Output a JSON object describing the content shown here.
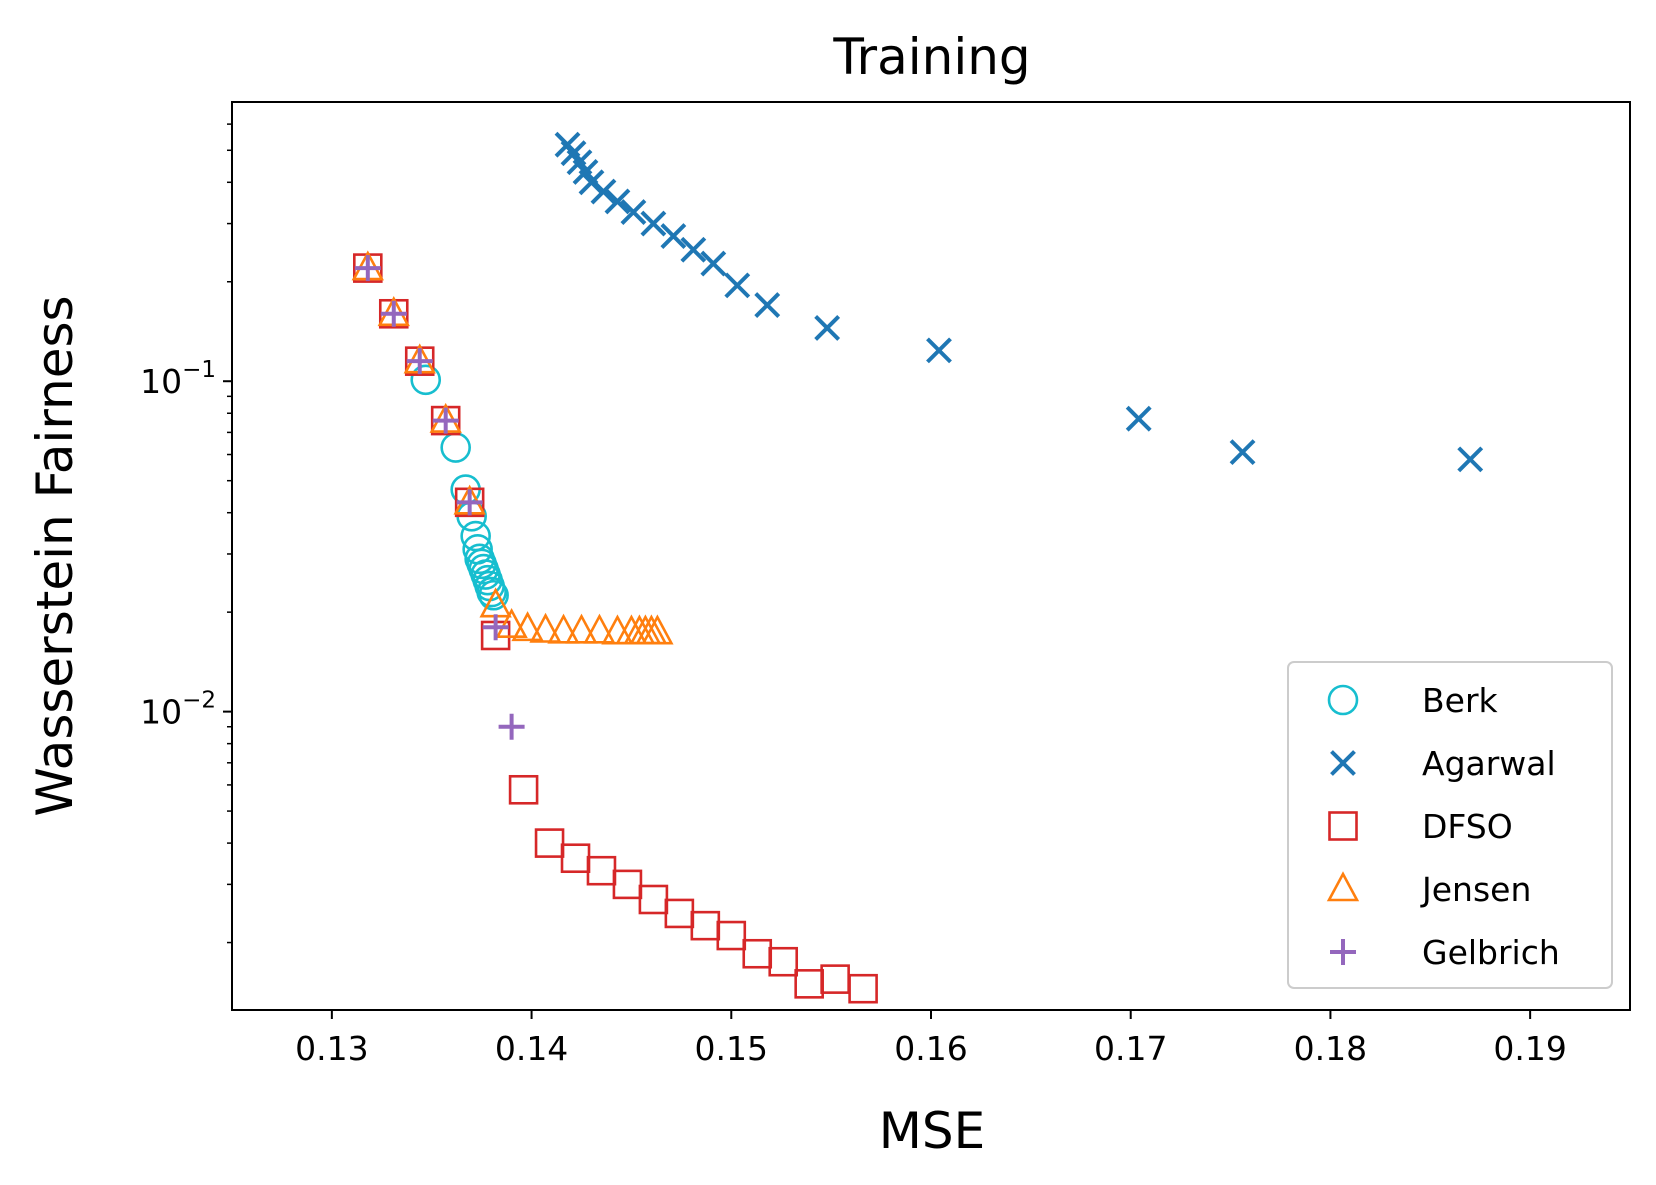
{
  "chart_data": {
    "type": "scatter",
    "title": "Training",
    "xlabel": "MSE",
    "ylabel": "Wasserstein Fairness",
    "xlim": [
      0.125,
      0.195
    ],
    "ylim": [
      0.00125,
      0.7
    ],
    "yscale": "log",
    "xticks": [
      0.13,
      0.14,
      0.15,
      0.16,
      0.17,
      0.18,
      0.19
    ],
    "xtick_labels": [
      "0.13",
      "0.14",
      "0.15",
      "0.16",
      "0.17",
      "0.18",
      "0.19"
    ],
    "ytick_major": [
      {
        "value": 0.01,
        "base": "10",
        "exp": "−2"
      },
      {
        "value": 0.1,
        "base": "10",
        "exp": "−1"
      }
    ],
    "legend_position": "lower-right",
    "series": [
      {
        "name": "Berk",
        "marker": "circle",
        "color": "#17becf",
        "x": [
          0.1347,
          0.1362,
          0.1367,
          0.137,
          0.1372,
          0.1373,
          0.1374,
          0.1375,
          0.1376,
          0.1377,
          0.1378,
          0.1379,
          0.138,
          0.1381
        ],
        "y": [
          0.101,
          0.063,
          0.047,
          0.039,
          0.034,
          0.031,
          0.029,
          0.028,
          0.027,
          0.026,
          0.025,
          0.024,
          0.023,
          0.0225
        ]
      },
      {
        "name": "Agarwal",
        "marker": "x",
        "color": "#1f77b4",
        "x": [
          0.1418,
          0.1421,
          0.1424,
          0.1427,
          0.143,
          0.1436,
          0.1443,
          0.1451,
          0.1461,
          0.1471,
          0.1481,
          0.1491,
          0.1503,
          0.1518,
          0.1548,
          0.1604,
          0.1704,
          0.1756,
          0.187
        ],
        "y": [
          0.52,
          0.49,
          0.46,
          0.43,
          0.4,
          0.375,
          0.35,
          0.325,
          0.3,
          0.275,
          0.25,
          0.227,
          0.195,
          0.17,
          0.145,
          0.124,
          0.077,
          0.061,
          0.058
        ]
      },
      {
        "name": "DFSO",
        "marker": "square",
        "color": "#d62728",
        "x": [
          0.1318,
          0.1331,
          0.1344,
          0.1357,
          0.1369,
          0.1382,
          0.1396,
          0.1409,
          0.1422,
          0.1435,
          0.1448,
          0.1461,
          0.1474,
          0.1487,
          0.15,
          0.1513,
          0.1526,
          0.1539,
          0.1552,
          0.1566
        ],
        "y": [
          0.22,
          0.16,
          0.115,
          0.076,
          0.043,
          0.017,
          0.0058,
          0.004,
          0.0036,
          0.0033,
          0.003,
          0.0027,
          0.00245,
          0.00225,
          0.0021,
          0.00185,
          0.00175,
          0.0015,
          0.00155,
          0.00145
        ]
      },
      {
        "name": "Jensen",
        "marker": "triangle",
        "color": "#ff7f0e",
        "x": [
          0.1318,
          0.1331,
          0.1344,
          0.1357,
          0.1369,
          0.1382,
          0.139,
          0.1398,
          0.1407,
          0.1416,
          0.1425,
          0.1434,
          0.1443,
          0.145,
          0.1454,
          0.1457,
          0.146,
          0.1463
        ],
        "y": [
          0.22,
          0.16,
          0.115,
          0.076,
          0.043,
          0.021,
          0.0182,
          0.0178,
          0.0176,
          0.0175,
          0.0175,
          0.0175,
          0.0174,
          0.0174,
          0.0174,
          0.0174,
          0.0174,
          0.0174
        ]
      },
      {
        "name": "Gelbrich",
        "marker": "plus",
        "color": "#9467bd",
        "x": [
          0.1318,
          0.1331,
          0.1344,
          0.1357,
          0.1369,
          0.1382,
          0.139
        ],
        "y": [
          0.22,
          0.16,
          0.115,
          0.076,
          0.043,
          0.018,
          0.009
        ]
      }
    ]
  }
}
